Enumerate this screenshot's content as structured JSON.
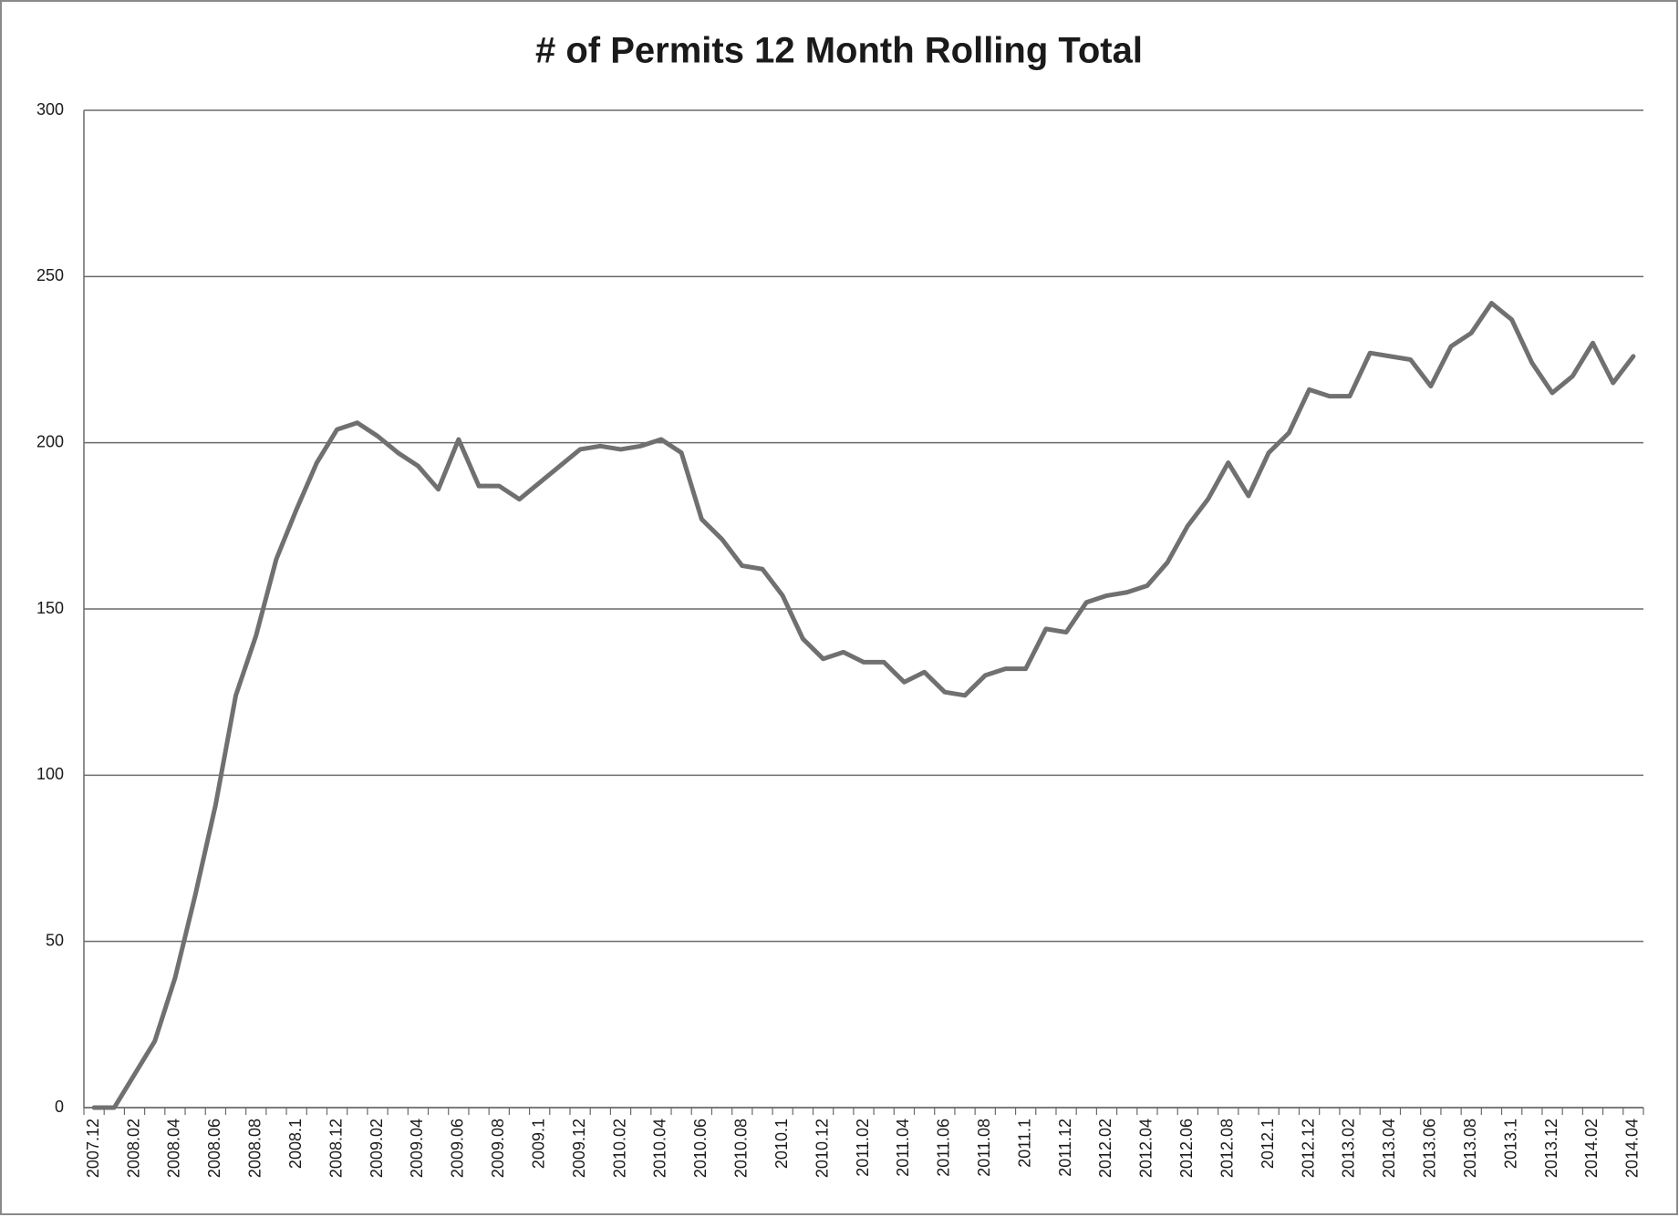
{
  "chart_data": {
    "type": "line",
    "title": "# of Permits 12 Month Rolling Total",
    "categories": [
      "2007.12",
      null,
      "2008.02",
      null,
      "2008.04",
      null,
      "2008.06",
      null,
      "2008.08",
      null,
      "2008.1",
      null,
      "2008.12",
      null,
      "2009.02",
      null,
      "2009.04",
      null,
      "2009.06",
      null,
      "2009.08",
      null,
      "2009.1",
      null,
      "2009.12",
      null,
      "2010.02",
      null,
      "2010.04",
      null,
      "2010.06",
      null,
      "2010.08",
      null,
      "2010.1",
      null,
      "2010.12",
      null,
      "2011.02",
      null,
      "2011.04",
      null,
      "2011.06",
      null,
      "2011.08",
      null,
      "2011.1",
      null,
      "2011.12",
      null,
      "2012.02",
      null,
      "2012.04",
      null,
      "2012.06",
      null,
      "2012.08",
      null,
      "2012.1",
      null,
      "2012.12",
      null,
      "2013.02",
      null,
      "2013.04",
      null,
      "2013.06",
      null,
      "2013.08",
      null,
      "2013.1",
      null,
      "2013.12",
      null,
      "2014.02",
      null,
      "2014.04"
    ],
    "values": [
      0,
      0,
      10,
      20,
      39,
      64,
      91,
      124,
      142,
      165,
      180,
      194,
      204,
      206,
      202,
      197,
      193,
      186,
      201,
      187,
      187,
      183,
      188,
      193,
      198,
      199,
      198,
      199,
      201,
      197,
      177,
      171,
      163,
      162,
      154,
      141,
      135,
      137,
      134,
      134,
      128,
      131,
      125,
      124,
      130,
      132,
      132,
      144,
      143,
      152,
      154,
      155,
      157,
      164,
      175,
      183,
      194,
      184,
      197,
      203,
      216,
      214,
      214,
      227,
      226,
      225,
      217,
      229,
      233,
      242,
      237,
      224,
      215,
      220,
      230,
      218,
      226
    ],
    "color": "#707070",
    "ylim": [
      0,
      300
    ],
    "yticks": [
      0,
      50,
      100,
      150,
      200,
      250,
      300
    ],
    "grid": true
  }
}
